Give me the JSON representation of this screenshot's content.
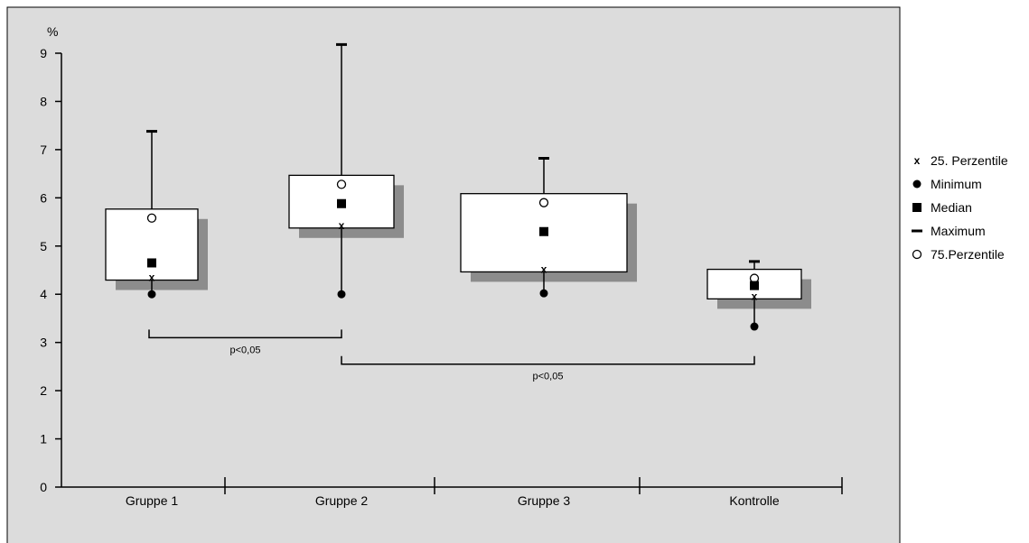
{
  "chart_data": {
    "type": "box",
    "ylabel": "%",
    "ylim": [
      0,
      9
    ],
    "yticks": [
      "0",
      "1",
      "2",
      "3",
      "4",
      "5",
      "6",
      "7",
      "8",
      "9"
    ],
    "categories": [
      "Gruppe 1",
      "Gruppe 2",
      "Gruppe 3",
      "Kontrolle"
    ],
    "boxes": [
      {
        "minimum": 4.0,
        "p25": 4.35,
        "median": 4.65,
        "p75": 5.58,
        "maximum": 7.38
      },
      {
        "minimum": 4.0,
        "p25": 5.43,
        "median": 5.88,
        "p75": 6.28,
        "maximum": 9.18
      },
      {
        "minimum": 4.02,
        "p25": 4.52,
        "median": 5.3,
        "p75": 5.9,
        "maximum": 6.82
      },
      {
        "minimum": 3.33,
        "p25": 3.96,
        "median": 4.18,
        "p75": 4.33,
        "maximum": 4.68
      }
    ],
    "significance": [
      {
        "from": "Gruppe 1",
        "to": "Gruppe 2",
        "label": "p<0,05",
        "y": 3.1
      },
      {
        "from": "Gruppe 2",
        "to": "Kontrolle",
        "label": "p<0,05",
        "y": 2.55
      }
    ],
    "legend": {
      "position": "right",
      "items": [
        {
          "symbol": "x",
          "label": "25. Perzentile"
        },
        {
          "symbol": "filled-circle",
          "label": "Minimum"
        },
        {
          "symbol": "filled-square",
          "label": "Median"
        },
        {
          "symbol": "dash",
          "label": "Maximum"
        },
        {
          "symbol": "open-circle",
          "label": "75.Perzentile"
        }
      ]
    },
    "colors": {
      "plot_background": "#dcdcdc",
      "box_fill": "#ffffff",
      "box_shadow": "#8c8c8c",
      "line": "#000000"
    }
  }
}
